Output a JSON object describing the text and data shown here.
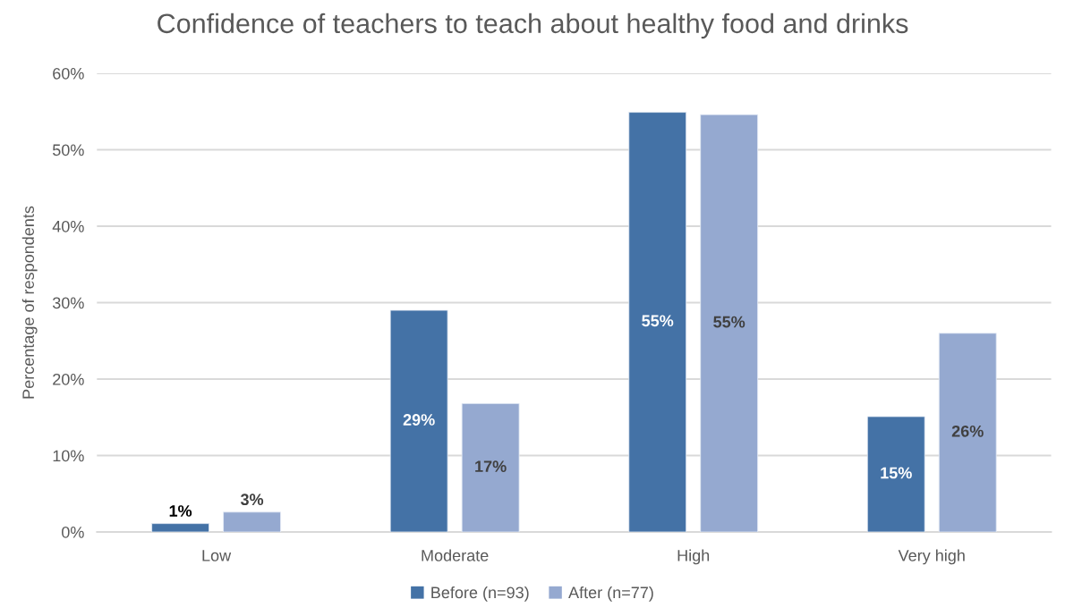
{
  "chart_data": {
    "type": "bar",
    "title": "Confidence of teachers to teach about healthy food and drinks",
    "ylabel": "Percentage of respondents",
    "categories": [
      "Low",
      "Moderate",
      "High",
      "Very high"
    ],
    "series": [
      {
        "name": "Before (n=93)",
        "color": "#4472a6",
        "values": [
          1.1,
          29.0,
          54.9,
          15.1
        ],
        "value_labels": [
          "1%",
          "29%",
          "55%",
          "15%"
        ]
      },
      {
        "name": "After (n=77)",
        "color": "#95a9d0",
        "values": [
          2.6,
          16.8,
          54.6,
          26.0
        ],
        "value_labels": [
          "3%",
          "17%",
          "55%",
          "26%"
        ]
      }
    ],
    "ylim": [
      0,
      60
    ],
    "yticks": [
      {
        "value": 0,
        "label": "0%"
      },
      {
        "value": 10,
        "label": "10%"
      },
      {
        "value": 20,
        "label": "20%"
      },
      {
        "value": 30,
        "label": "30%"
      },
      {
        "value": 40,
        "label": "40%"
      },
      {
        "value": 50,
        "label": "50%"
      },
      {
        "value": 60,
        "label": "60%"
      }
    ],
    "grid": "y",
    "legend": "bottom"
  }
}
